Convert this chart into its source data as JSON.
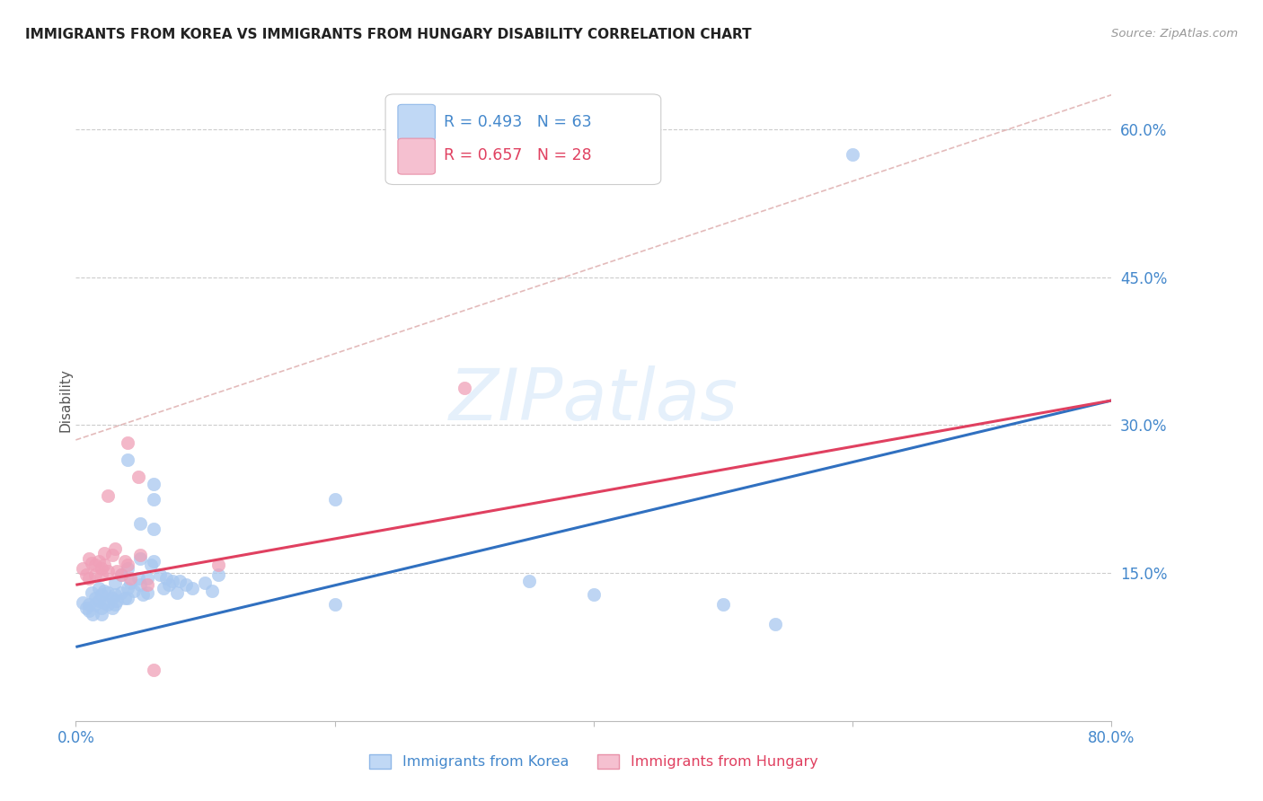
{
  "title": "IMMIGRANTS FROM KOREA VS IMMIGRANTS FROM HUNGARY DISABILITY CORRELATION CHART",
  "source": "Source: ZipAtlas.com",
  "ylabel_label": "Disability",
  "x_min": 0.0,
  "x_max": 0.8,
  "y_min": 0.0,
  "y_max": 0.65,
  "y_ticks": [
    0.15,
    0.3,
    0.45,
    0.6
  ],
  "y_tick_labels": [
    "15.0%",
    "30.0%",
    "45.0%",
    "60.0%"
  ],
  "korea_color": "#a8c8f0",
  "hungary_color": "#f0a0b8",
  "korea_line_color": "#3070c0",
  "hungary_line_color": "#e04060",
  "korea_R": 0.493,
  "korea_N": 63,
  "hungary_R": 0.657,
  "hungary_N": 28,
  "background_color": "#ffffff",
  "korea_points": [
    [
      0.005,
      0.12
    ],
    [
      0.008,
      0.115
    ],
    [
      0.01,
      0.118
    ],
    [
      0.01,
      0.112
    ],
    [
      0.012,
      0.13
    ],
    [
      0.013,
      0.108
    ],
    [
      0.015,
      0.125
    ],
    [
      0.015,
      0.118
    ],
    [
      0.018,
      0.135
    ],
    [
      0.018,
      0.122
    ],
    [
      0.02,
      0.128
    ],
    [
      0.02,
      0.115
    ],
    [
      0.02,
      0.108
    ],
    [
      0.022,
      0.132
    ],
    [
      0.022,
      0.12
    ],
    [
      0.025,
      0.13
    ],
    [
      0.025,
      0.118
    ],
    [
      0.028,
      0.125
    ],
    [
      0.028,
      0.115
    ],
    [
      0.03,
      0.14
    ],
    [
      0.03,
      0.128
    ],
    [
      0.03,
      0.118
    ],
    [
      0.032,
      0.122
    ],
    [
      0.035,
      0.148
    ],
    [
      0.035,
      0.13
    ],
    [
      0.038,
      0.125
    ],
    [
      0.04,
      0.265
    ],
    [
      0.04,
      0.155
    ],
    [
      0.04,
      0.135
    ],
    [
      0.04,
      0.125
    ],
    [
      0.042,
      0.14
    ],
    [
      0.045,
      0.132
    ],
    [
      0.048,
      0.145
    ],
    [
      0.05,
      0.2
    ],
    [
      0.05,
      0.165
    ],
    [
      0.05,
      0.138
    ],
    [
      0.052,
      0.128
    ],
    [
      0.055,
      0.145
    ],
    [
      0.055,
      0.13
    ],
    [
      0.058,
      0.158
    ],
    [
      0.06,
      0.24
    ],
    [
      0.06,
      0.195
    ],
    [
      0.06,
      0.225
    ],
    [
      0.06,
      0.162
    ],
    [
      0.065,
      0.148
    ],
    [
      0.068,
      0.135
    ],
    [
      0.07,
      0.145
    ],
    [
      0.072,
      0.138
    ],
    [
      0.075,
      0.142
    ],
    [
      0.078,
      0.13
    ],
    [
      0.08,
      0.142
    ],
    [
      0.085,
      0.138
    ],
    [
      0.09,
      0.135
    ],
    [
      0.1,
      0.14
    ],
    [
      0.105,
      0.132
    ],
    [
      0.11,
      0.148
    ],
    [
      0.2,
      0.225
    ],
    [
      0.2,
      0.118
    ],
    [
      0.35,
      0.142
    ],
    [
      0.4,
      0.128
    ],
    [
      0.5,
      0.118
    ],
    [
      0.54,
      0.098
    ],
    [
      0.6,
      0.575
    ]
  ],
  "hungary_points": [
    [
      0.005,
      0.155
    ],
    [
      0.008,
      0.148
    ],
    [
      0.01,
      0.165
    ],
    [
      0.01,
      0.145
    ],
    [
      0.012,
      0.16
    ],
    [
      0.015,
      0.158
    ],
    [
      0.015,
      0.148
    ],
    [
      0.018,
      0.162
    ],
    [
      0.02,
      0.155
    ],
    [
      0.02,
      0.148
    ],
    [
      0.022,
      0.17
    ],
    [
      0.022,
      0.158
    ],
    [
      0.025,
      0.152
    ],
    [
      0.025,
      0.228
    ],
    [
      0.028,
      0.168
    ],
    [
      0.03,
      0.175
    ],
    [
      0.032,
      0.152
    ],
    [
      0.035,
      0.148
    ],
    [
      0.038,
      0.162
    ],
    [
      0.04,
      0.158
    ],
    [
      0.04,
      0.282
    ],
    [
      0.042,
      0.145
    ],
    [
      0.048,
      0.248
    ],
    [
      0.05,
      0.168
    ],
    [
      0.055,
      0.138
    ],
    [
      0.06,
      0.052
    ],
    [
      0.11,
      0.158
    ],
    [
      0.3,
      0.338
    ]
  ],
  "korea_trend": [
    0.0,
    0.8,
    0.075,
    0.325
  ],
  "hungary_trend": [
    0.0,
    0.8,
    0.138,
    0.325
  ],
  "dashed_line": [
    0.0,
    0.8,
    0.285,
    0.635
  ]
}
